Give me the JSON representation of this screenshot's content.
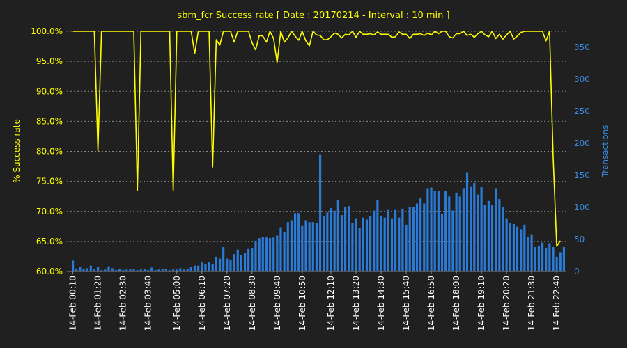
{
  "chart_data": {
    "type": "bar+line",
    "title": "sbm_fcr Success rate   [ Date : 20170214 - Interval : 10 min ]",
    "ylabel_left": "% Success rate",
    "ylabel_right": "Transactions",
    "ylim_left": [
      60,
      100
    ],
    "ylim_right": [
      0,
      375
    ],
    "left_ticks": [
      "60.0%",
      "65.0%",
      "70.0%",
      "75.0%",
      "80.0%",
      "85.0%",
      "90.0%",
      "95.0%",
      "100.0%"
    ],
    "right_ticks": [
      "0",
      "50",
      "100",
      "150",
      "200",
      "250",
      "300",
      "350"
    ],
    "right_tick_values": [
      0,
      50,
      100,
      150,
      200,
      250,
      300,
      350
    ],
    "x_tick_labels": [
      "14-Feb 00:10",
      "14-Feb 01:20",
      "14-Feb 02:30",
      "14-Feb 03:40",
      "14-Feb 05:00",
      "14-Feb 06:10",
      "14-Feb 07:20",
      "14-Feb 08:30",
      "14-Feb 09:40",
      "14-Feb 10:50",
      "14-Feb 12:10",
      "14-Feb 13:20",
      "14-Feb 14:30",
      "14-Feb 15:40",
      "14-Feb 16:50",
      "14-Feb 18:00",
      "14-Feb 19:10",
      "14-Feb 20:20",
      "14-Feb 21:30",
      "14-Feb 22:40"
    ],
    "x_tick_index": [
      0,
      7,
      14,
      21,
      29,
      36,
      43,
      50,
      57,
      64,
      72,
      79,
      86,
      93,
      100,
      107,
      114,
      121,
      128,
      135
    ],
    "grid": true,
    "series": [
      {
        "name": "Transactions",
        "axis": "right",
        "color": "#2a7ad8",
        "values": [
          17,
          4,
          7,
          4,
          5,
          9,
          3,
          7,
          2,
          3,
          8,
          5,
          2,
          4,
          2,
          3,
          3,
          4,
          2,
          3,
          4,
          2,
          6,
          2,
          3,
          4,
          4,
          2,
          3,
          3,
          5,
          3,
          4,
          7,
          9,
          9,
          14,
          12,
          15,
          12,
          23,
          20,
          38,
          20,
          18,
          27,
          34,
          26,
          29,
          35,
          36,
          48,
          52,
          54,
          53,
          52,
          53,
          56,
          69,
          62,
          77,
          80,
          91,
          91,
          72,
          80,
          77,
          77,
          75,
          183,
          86,
          92,
          99,
          95,
          111,
          88,
          101,
          102,
          75,
          83,
          68,
          84,
          81,
          86,
          95,
          112,
          87,
          84,
          96,
          83,
          96,
          84,
          98,
          73,
          101,
          100,
          106,
          114,
          106,
          130,
          131,
          125,
          126,
          90,
          126,
          117,
          95,
          123,
          117,
          130,
          155,
          133,
          138,
          120,
          132,
          104,
          110,
          104,
          130,
          113,
          101,
          83,
          75,
          74,
          70,
          66,
          73,
          54,
          58,
          38,
          40,
          45,
          37,
          44,
          38,
          23,
          30,
          38
        ]
      },
      {
        "name": "Success rate",
        "axis": "left",
        "color": "#ffff00",
        "values": [
          100,
          100,
          100,
          100,
          100,
          100,
          100,
          80.1,
          100,
          100,
          100,
          100,
          100,
          100,
          100,
          100,
          100,
          100,
          73.5,
          100,
          100,
          100,
          100,
          100,
          100,
          100,
          100,
          100,
          73.5,
          100,
          100,
          100,
          100,
          100,
          96.3,
          100,
          100,
          100,
          100,
          77.4,
          98.6,
          97.7,
          100,
          100,
          100,
          98.2,
          100,
          100,
          100,
          100,
          98.1,
          96.9,
          99.3,
          99.2,
          98.2,
          100,
          98.8,
          94.8,
          100,
          98.2,
          98.9,
          100,
          99.2,
          98.5,
          100,
          98.4,
          97.6,
          100,
          99.4,
          99.3,
          98.6,
          98.6,
          99.1,
          99.7,
          99.5,
          98.9,
          99.5,
          99.4,
          100,
          99.0,
          100,
          99.5,
          99.5,
          99.6,
          99.4,
          99.9,
          99.5,
          99.5,
          99.5,
          99.0,
          99.1,
          99.9,
          99.5,
          99.5,
          98.8,
          99.5,
          99.5,
          99.6,
          99.3,
          99.7,
          99.4,
          100,
          99.6,
          100,
          100,
          99.1,
          98.9,
          99.6,
          99.6,
          100,
          99.3,
          99.5,
          99.0,
          99.6,
          100,
          99.4,
          99.1,
          100,
          98.8,
          99.5,
          98.7,
          99.4,
          100,
          98.7,
          99.2,
          99.8,
          100,
          100,
          100,
          100,
          100,
          100,
          98.4,
          100,
          79.0,
          64.2,
          65.1
        ]
      }
    ]
  }
}
